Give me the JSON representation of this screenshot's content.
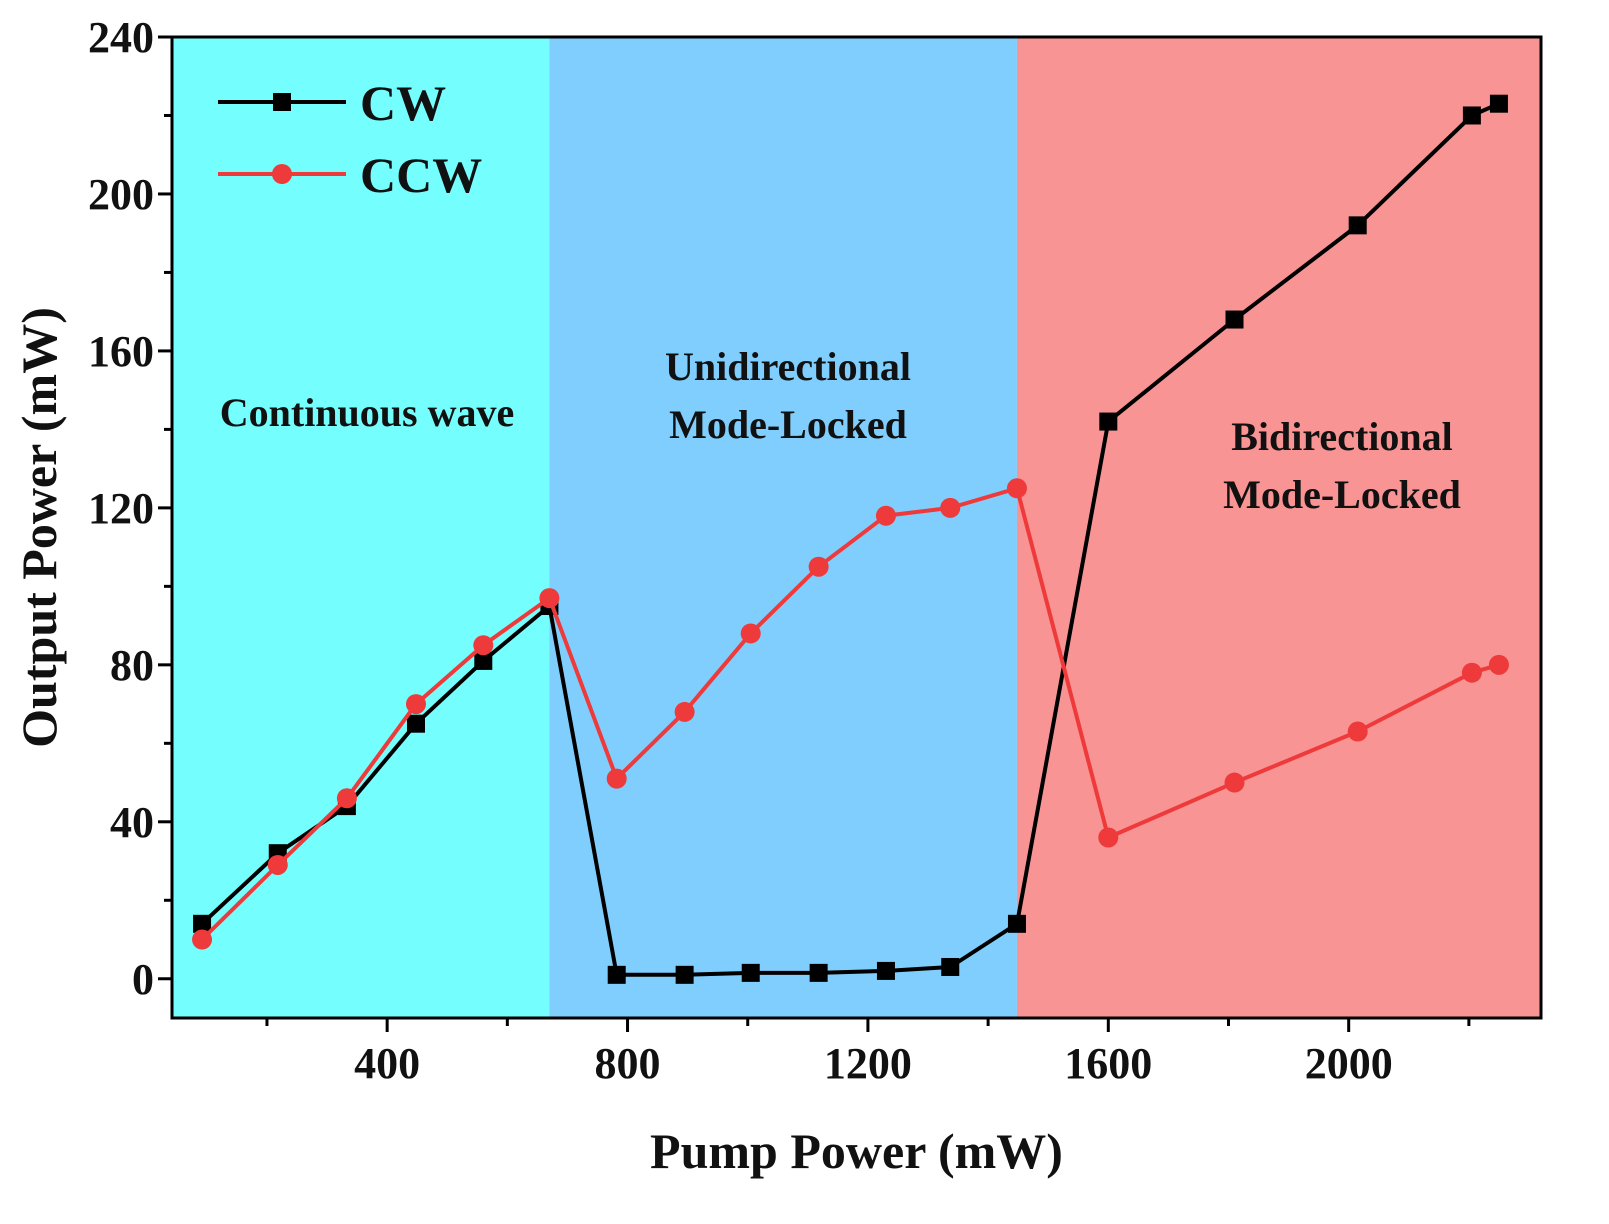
{
  "chart_data": {
    "type": "line",
    "xlabel": "Pump Power (mW)",
    "ylabel": "Output Power (mW)",
    "xlim": [
      42,
      2320
    ],
    "ylim": [
      -10,
      240
    ],
    "xticks": [
      400,
      800,
      1200,
      1600,
      2000
    ],
    "xticks_minor": [
      200,
      600,
      1000,
      1400,
      1800,
      2200
    ],
    "yticks": [
      0,
      40,
      80,
      120,
      160,
      200,
      240
    ],
    "yticks_minor": [
      20,
      60,
      100,
      140,
      180,
      220
    ],
    "legend_position": "top-left",
    "regions": [
      {
        "label_lines": [
          "Continuous wave"
        ],
        "x_range": [
          42,
          670
        ],
        "color": "#74fefe"
      },
      {
        "label_lines": [
          "Unidirectional",
          "Mode-Locked"
        ],
        "x_range": [
          670,
          1448
        ],
        "color": "#80cefd"
      },
      {
        "label_lines": [
          "Bidirectional",
          "Mode-Locked"
        ],
        "x_range": [
          1448,
          2320
        ],
        "color": "#f99494"
      }
    ],
    "series": [
      {
        "name": "CW",
        "color": "#000000",
        "marker": "square",
        "x": [
          92,
          218,
          333,
          448,
          560,
          670,
          782,
          895,
          1005,
          1118,
          1230,
          1337,
          1448,
          1600,
          1810,
          2015,
          2205,
          2250
        ],
        "y": [
          14,
          32,
          44,
          65,
          81,
          95,
          1,
          1,
          1.5,
          1.5,
          2,
          3,
          14,
          142,
          168,
          192,
          220,
          223
        ]
      },
      {
        "name": "CCW",
        "color": "#ee3a3a",
        "marker": "circle",
        "x": [
          92,
          218,
          333,
          448,
          560,
          670,
          782,
          895,
          1005,
          1118,
          1230,
          1337,
          1448,
          1600,
          1810,
          2015,
          2205,
          2250
        ],
        "y": [
          10,
          29,
          46,
          70,
          85,
          97,
          51,
          68,
          88,
          105,
          118,
          120,
          125,
          36,
          50,
          63,
          78,
          80
        ]
      }
    ]
  }
}
